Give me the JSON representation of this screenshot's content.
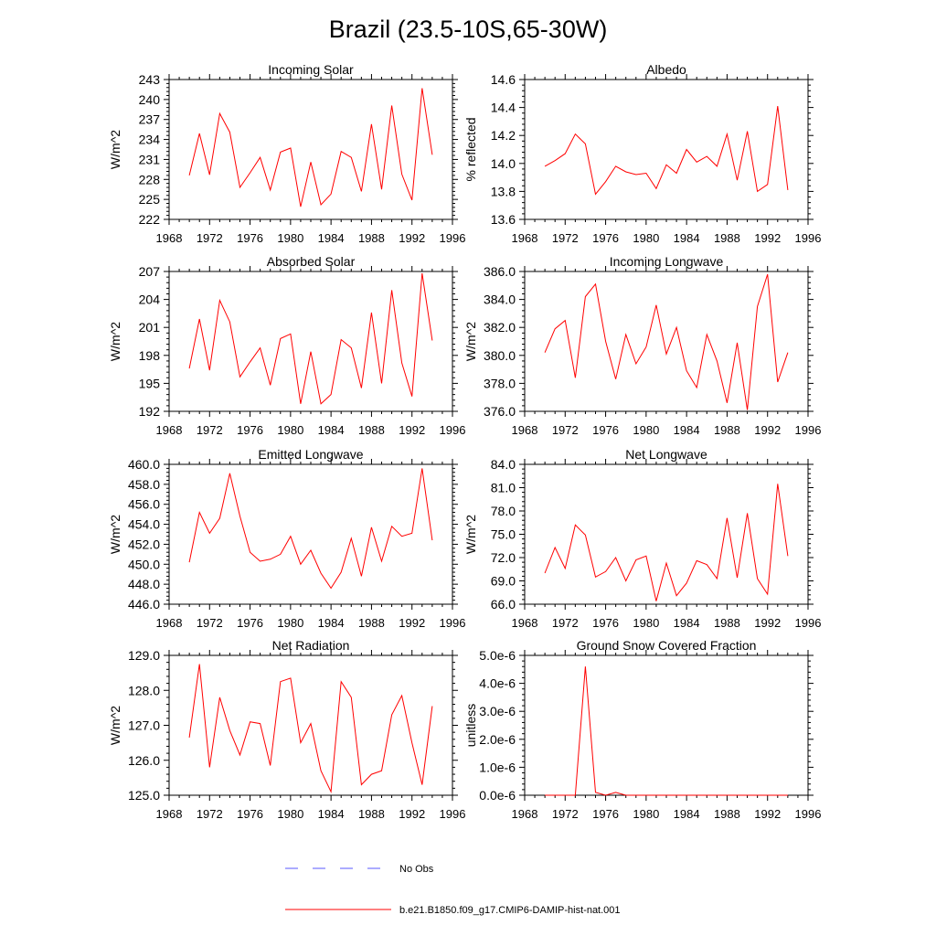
{
  "figure": {
    "title": "Brazil (23.5-10S,65-30W)",
    "legend": [
      {
        "label": "No Obs",
        "color": "#5a5aff",
        "style": "dashed"
      },
      {
        "label": "b.e21.B1850.f09_g17.CMIP6-DAMIP-hist-nat.001",
        "color": "#ff0000",
        "style": "solid"
      }
    ]
  },
  "chart_data": [
    {
      "id": "incoming-solar",
      "type": "line",
      "title": "Incoming Solar",
      "ylabel": "W/m^2",
      "xlim": [
        1968,
        1996
      ],
      "xticks": [
        1968,
        1972,
        1976,
        1980,
        1984,
        1988,
        1992,
        1996
      ],
      "ylim": [
        222,
        243
      ],
      "yticks": [
        222,
        225,
        228,
        231,
        234,
        237,
        240,
        243
      ],
      "yticklabels": [
        "222",
        "225",
        "228",
        "231",
        "234",
        "237",
        "240",
        "243"
      ],
      "series": [
        {
          "color": "#ff0000",
          "x": [
            1970,
            1971,
            1972,
            1973,
            1974,
            1975,
            1976,
            1977,
            1978,
            1979,
            1980,
            1981,
            1982,
            1983,
            1984,
            1985,
            1986,
            1987,
            1988,
            1989,
            1990,
            1991,
            1992,
            1993,
            1994
          ],
          "y": [
            228.6,
            234.9,
            228.7,
            237.9,
            235.1,
            226.8,
            229.0,
            231.3,
            226.4,
            232.1,
            232.7,
            223.9,
            230.6,
            224.2,
            225.8,
            232.2,
            231.3,
            226.2,
            236.3,
            226.5,
            239.1,
            228.8,
            224.9,
            241.7,
            231.7
          ]
        }
      ]
    },
    {
      "id": "albedo",
      "type": "line",
      "title": "Albedo",
      "ylabel": "% reflected",
      "xlim": [
        1968,
        1996
      ],
      "xticks": [
        1968,
        1972,
        1976,
        1980,
        1984,
        1988,
        1992,
        1996
      ],
      "ylim": [
        13.6,
        14.6
      ],
      "yticks": [
        13.6,
        13.8,
        14.0,
        14.2,
        14.4,
        14.6
      ],
      "yticklabels": [
        "13.6",
        "13.8",
        "14.0",
        "14.2",
        "14.4",
        "14.6"
      ],
      "series": [
        {
          "color": "#ff0000",
          "x": [
            1970,
            1971,
            1972,
            1973,
            1974,
            1975,
            1976,
            1977,
            1978,
            1979,
            1980,
            1981,
            1982,
            1983,
            1984,
            1985,
            1986,
            1987,
            1988,
            1989,
            1990,
            1991,
            1992,
            1993,
            1994
          ],
          "y": [
            13.98,
            14.02,
            14.07,
            14.21,
            14.14,
            13.78,
            13.87,
            13.98,
            13.94,
            13.92,
            13.93,
            13.82,
            13.99,
            13.93,
            14.1,
            14.01,
            14.05,
            13.98,
            14.21,
            13.88,
            14.23,
            13.8,
            13.85,
            14.41,
            13.81
          ]
        }
      ]
    },
    {
      "id": "absorbed-solar",
      "type": "line",
      "title": "Absorbed Solar",
      "ylabel": "W/m^2",
      "xlim": [
        1968,
        1996
      ],
      "xticks": [
        1968,
        1972,
        1976,
        1980,
        1984,
        1988,
        1992,
        1996
      ],
      "ylim": [
        192,
        207
      ],
      "yticks": [
        192,
        195,
        198,
        201,
        204,
        207
      ],
      "yticklabels": [
        "192",
        "195",
        "198",
        "201",
        "204",
        "207"
      ],
      "series": [
        {
          "color": "#ff0000",
          "x": [
            1970,
            1971,
            1972,
            1973,
            1974,
            1975,
            1976,
            1977,
            1978,
            1979,
            1980,
            1981,
            1982,
            1983,
            1984,
            1985,
            1986,
            1987,
            1988,
            1989,
            1990,
            1991,
            1992,
            1993,
            1994
          ],
          "y": [
            196.6,
            201.9,
            196.4,
            203.9,
            201.6,
            195.7,
            197.3,
            198.8,
            194.8,
            199.8,
            200.3,
            192.8,
            198.4,
            192.8,
            193.8,
            199.7,
            198.8,
            194.5,
            202.6,
            195.0,
            205.0,
            197.2,
            193.6,
            206.8,
            199.6
          ]
        }
      ]
    },
    {
      "id": "incoming-longwave",
      "type": "line",
      "title": "Incoming Longwave",
      "ylabel": "W/m^2",
      "xlim": [
        1968,
        1996
      ],
      "xticks": [
        1968,
        1972,
        1976,
        1980,
        1984,
        1988,
        1992,
        1996
      ],
      "ylim": [
        376,
        386
      ],
      "yticks": [
        376,
        378,
        380,
        382,
        384,
        386
      ],
      "yticklabels": [
        "376.0",
        "378.0",
        "380.0",
        "382.0",
        "384.0",
        "386.0"
      ],
      "series": [
        {
          "color": "#ff0000",
          "x": [
            1970,
            1971,
            1972,
            1973,
            1974,
            1975,
            1976,
            1977,
            1978,
            1979,
            1980,
            1981,
            1982,
            1983,
            1984,
            1985,
            1986,
            1987,
            1988,
            1989,
            1990,
            1991,
            1992,
            1993,
            1994
          ],
          "y": [
            380.2,
            381.9,
            382.5,
            378.4,
            384.2,
            385.1,
            381.0,
            378.3,
            381.5,
            379.4,
            380.6,
            383.6,
            380.1,
            382.0,
            378.9,
            377.7,
            381.5,
            379.6,
            376.6,
            380.9,
            376.1,
            383.5,
            385.8,
            378.1,
            380.2
          ]
        }
      ]
    },
    {
      "id": "emitted-longwave",
      "type": "line",
      "title": "Emitted Longwave",
      "ylabel": "W/m^2",
      "xlim": [
        1968,
        1996
      ],
      "xticks": [
        1968,
        1972,
        1976,
        1980,
        1984,
        1988,
        1992,
        1996
      ],
      "ylim": [
        446,
        460
      ],
      "yticks": [
        446,
        448,
        450,
        452,
        454,
        456,
        458,
        460
      ],
      "yticklabels": [
        "446.0",
        "448.0",
        "450.0",
        "452.0",
        "454.0",
        "456.0",
        "458.0",
        "460.0"
      ],
      "series": [
        {
          "color": "#ff0000",
          "x": [
            1970,
            1971,
            1972,
            1973,
            1974,
            1975,
            1976,
            1977,
            1978,
            1979,
            1980,
            1981,
            1982,
            1983,
            1984,
            1985,
            1986,
            1987,
            1988,
            1989,
            1990,
            1991,
            1992,
            1993,
            1994
          ],
          "y": [
            450.2,
            455.2,
            453.1,
            454.6,
            459.1,
            454.8,
            451.2,
            450.3,
            450.5,
            451.0,
            452.8,
            450.0,
            451.4,
            449.1,
            447.6,
            449.2,
            452.6,
            448.8,
            453.7,
            450.3,
            453.8,
            452.8,
            453.1,
            459.6,
            452.4
          ]
        }
      ]
    },
    {
      "id": "net-longwave",
      "type": "line",
      "title": "Net Longwave",
      "ylabel": "W/m^2",
      "xlim": [
        1968,
        1996
      ],
      "xticks": [
        1968,
        1972,
        1976,
        1980,
        1984,
        1988,
        1992,
        1996
      ],
      "ylim": [
        66,
        84
      ],
      "yticks": [
        66,
        69,
        72,
        75,
        78,
        81,
        84
      ],
      "yticklabels": [
        "66.0",
        "69.0",
        "72.0",
        "75.0",
        "78.0",
        "81.0",
        "84.0"
      ],
      "series": [
        {
          "color": "#ff0000",
          "x": [
            1970,
            1971,
            1972,
            1973,
            1974,
            1975,
            1976,
            1977,
            1978,
            1979,
            1980,
            1981,
            1982,
            1983,
            1984,
            1985,
            1986,
            1987,
            1988,
            1989,
            1990,
            1991,
            1992,
            1993,
            1994
          ],
          "y": [
            70.0,
            73.3,
            70.6,
            76.2,
            74.9,
            69.5,
            70.2,
            72.0,
            69.0,
            71.7,
            72.2,
            66.4,
            71.3,
            67.1,
            68.7,
            71.6,
            71.1,
            69.3,
            77.1,
            69.4,
            77.7,
            69.3,
            67.3,
            81.5,
            72.2
          ]
        }
      ]
    },
    {
      "id": "net-radiation",
      "type": "line",
      "title": "Net Radiation",
      "ylabel": "W/m^2",
      "xlim": [
        1968,
        1996
      ],
      "xticks": [
        1968,
        1972,
        1976,
        1980,
        1984,
        1988,
        1992,
        1996
      ],
      "ylim": [
        125,
        129
      ],
      "yticks": [
        125,
        126,
        127,
        128,
        129
      ],
      "yticklabels": [
        "125.0",
        "126.0",
        "127.0",
        "128.0",
        "129.0"
      ],
      "series": [
        {
          "color": "#ff0000",
          "x": [
            1970,
            1971,
            1972,
            1973,
            1974,
            1975,
            1976,
            1977,
            1978,
            1979,
            1980,
            1981,
            1982,
            1983,
            1984,
            1985,
            1986,
            1987,
            1988,
            1989,
            1990,
            1991,
            1992,
            1993,
            1994
          ],
          "y": [
            126.65,
            128.75,
            125.8,
            127.8,
            126.85,
            126.15,
            127.1,
            127.05,
            125.85,
            128.25,
            128.35,
            126.5,
            127.05,
            125.7,
            125.1,
            128.25,
            127.8,
            125.3,
            125.6,
            125.7,
            127.3,
            127.85,
            126.5,
            125.3,
            127.55
          ]
        }
      ]
    },
    {
      "id": "ground-snow",
      "type": "line",
      "title": "Ground Snow Covered Fraction",
      "ylabel": "unitless",
      "xlim": [
        1968,
        1996
      ],
      "xticks": [
        1968,
        1972,
        1976,
        1980,
        1984,
        1988,
        1992,
        1996
      ],
      "ylim": [
        0,
        5e-06
      ],
      "yticks": [
        0,
        1e-06,
        2e-06,
        3e-06,
        4e-06,
        5e-06
      ],
      "yticklabels": [
        "0.0e-6",
        "1.0e-6",
        "2.0e-6",
        "3.0e-6",
        "4.0e-6",
        "5.0e-6"
      ],
      "series": [
        {
          "color": "#ff0000",
          "x": [
            1970,
            1971,
            1972,
            1973,
            1974,
            1975,
            1976,
            1977,
            1978,
            1979,
            1980,
            1981,
            1982,
            1983,
            1984,
            1985,
            1986,
            1987,
            1988,
            1989,
            1990,
            1991,
            1992,
            1993,
            1994
          ],
          "y": [
            0,
            0,
            0,
            0,
            4.6e-06,
            1e-07,
            0,
            1e-07,
            0,
            0,
            0,
            0,
            0,
            0,
            0,
            0,
            0,
            0,
            0,
            0,
            0,
            0,
            0,
            0,
            0
          ]
        }
      ]
    }
  ]
}
